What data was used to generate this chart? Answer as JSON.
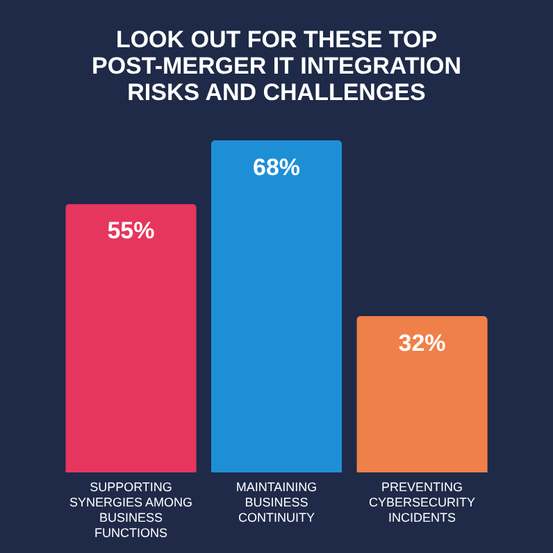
{
  "chart_data": {
    "type": "bar",
    "title": "LOOK OUT FOR THESE TOP POST-MERGER IT INTEGRATION RISKS AND CHALLENGES",
    "categories": [
      "SUPPORTING SYNERGIES AMONG BUSINESS FUNCTIONS",
      "MAINTAINING BUSINESS CONTINUITY",
      "PREVENTING CYBERSECURITY INCIDENTS"
    ],
    "values": [
      55,
      68,
      32
    ],
    "value_labels": [
      "55%",
      "68%",
      "32%"
    ],
    "colors": [
      "#e6365e",
      "#1e8fd6",
      "#f08049"
    ]
  }
}
